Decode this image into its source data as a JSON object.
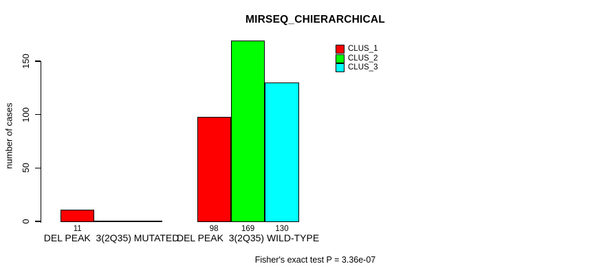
{
  "chart_data": {
    "type": "bar",
    "title": "MIRSEQ_CHIERARCHICAL",
    "ylabel": "number of cases",
    "xlabel": "",
    "categories": [
      "DEL PEAK  3(2Q35) MUTATED",
      "DEL PEAK  3(2Q35) WILD-TYPE"
    ],
    "series": [
      {
        "name": "CLUS_1",
        "color": "#ff0000",
        "values": [
          11,
          98
        ]
      },
      {
        "name": "CLUS_2",
        "color": "#00ff00",
        "values": [
          0,
          169
        ]
      },
      {
        "name": "CLUS_3",
        "color": "#00ffff",
        "values": [
          0,
          130
        ]
      }
    ],
    "bar_value_labels": [
      [
        "11",
        "",
        ""
      ],
      [
        "98",
        "169",
        "130"
      ]
    ],
    "yticks": [
      0,
      50,
      100,
      150
    ],
    "ylim": [
      0,
      150
    ],
    "grid": false,
    "legend_position": "top-right-inside",
    "legend_entries": [
      "CLUS_1",
      "CLUS_2",
      "CLUS_3"
    ],
    "footer": "Fisher's exact test P = 3.36e-07"
  }
}
